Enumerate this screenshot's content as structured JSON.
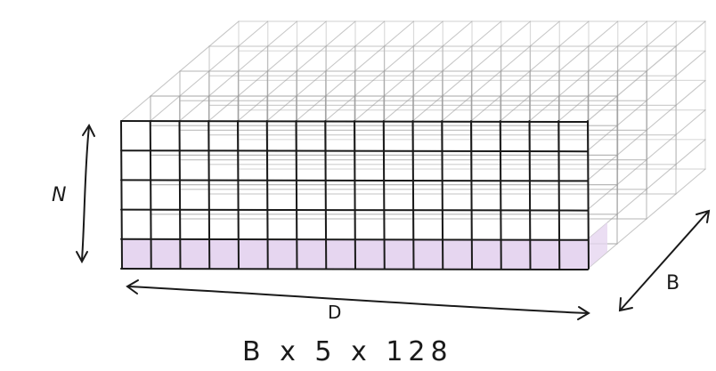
{
  "labels": {
    "height": "N",
    "width": "D",
    "depth": "B",
    "shape": "B x 5 x 128"
  },
  "grid": {
    "front_columns": 16,
    "front_rows": 5,
    "depth_layers": 4
  },
  "colors": {
    "front_grid": "#1a1a1a",
    "back_grid": "#9a9a9a",
    "highlight_row": "#e6d6f0",
    "arrows": "#1a1a1a"
  }
}
